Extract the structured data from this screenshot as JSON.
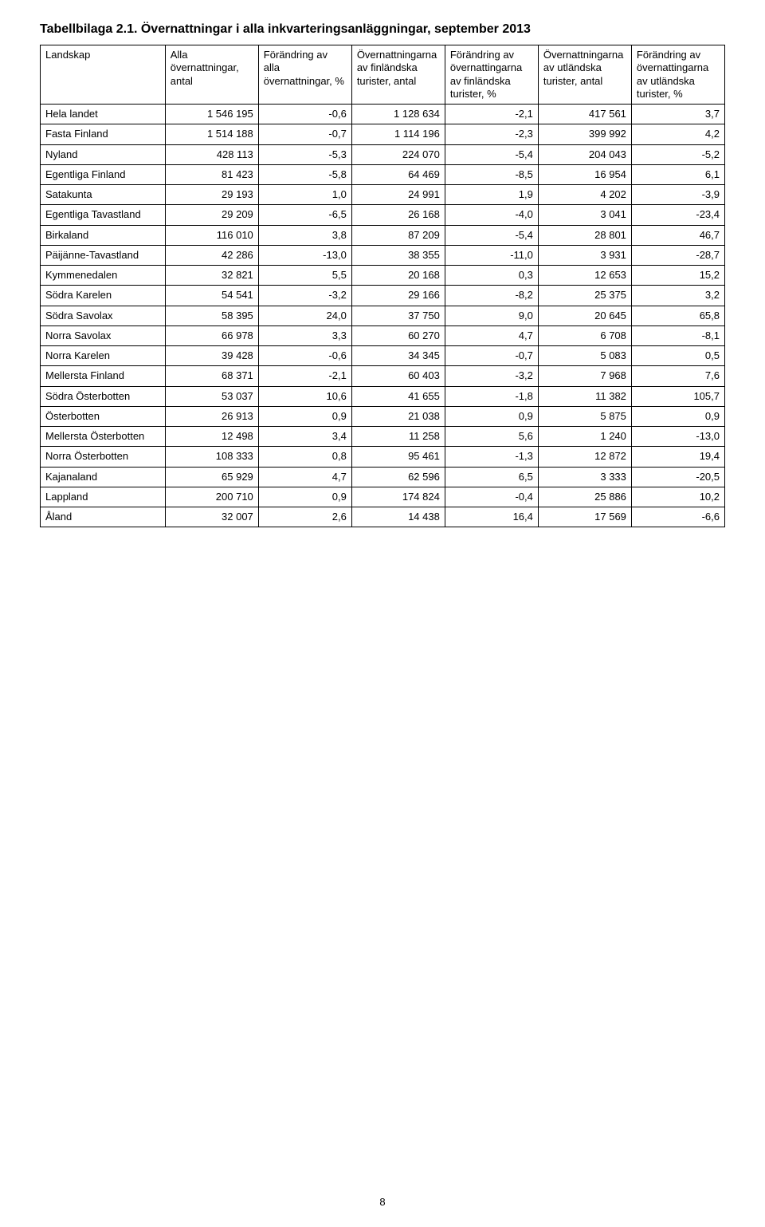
{
  "page_number": "8",
  "title_prefix": "Tabellbilaga 2.1. ",
  "title_main": "Övernattningar i alla inkvarteringsanläggningar, september 2013",
  "table": {
    "columns": [
      "Landskap",
      "Alla övernattningar, antal",
      "Förändring av alla övernattningar, %",
      "Övernattningarna av finländska turister, antal",
      "Förändring av övernattingarna av finländska turister, %",
      "Övernattningarna av utländska turister, antal",
      "Förändring av övernattingarna av utländska turister, %"
    ],
    "col_classes": [
      "col-region",
      "col-n",
      "col-n",
      "col-n",
      "col-n",
      "col-n",
      "col-n"
    ],
    "rows": [
      [
        "Hela landet",
        "1 546 195",
        "-0,6",
        "1 128 634",
        "-2,1",
        "417 561",
        "3,7"
      ],
      [
        "Fasta Finland",
        "1 514 188",
        "-0,7",
        "1 114 196",
        "-2,3",
        "399 992",
        "4,2"
      ],
      [
        "Nyland",
        "428 113",
        "-5,3",
        "224 070",
        "-5,4",
        "204 043",
        "-5,2"
      ],
      [
        "Egentliga Finland",
        "81 423",
        "-5,8",
        "64 469",
        "-8,5",
        "16 954",
        "6,1"
      ],
      [
        "Satakunta",
        "29 193",
        "1,0",
        "24 991",
        "1,9",
        "4 202",
        "-3,9"
      ],
      [
        "Egentliga Tavastland",
        "29 209",
        "-6,5",
        "26 168",
        "-4,0",
        "3 041",
        "-23,4"
      ],
      [
        "Birkaland",
        "116 010",
        "3,8",
        "87 209",
        "-5,4",
        "28 801",
        "46,7"
      ],
      [
        "Päijänne-Tavastland",
        "42 286",
        "-13,0",
        "38 355",
        "-11,0",
        "3 931",
        "-28,7"
      ],
      [
        "Kymmenedalen",
        "32 821",
        "5,5",
        "20 168",
        "0,3",
        "12 653",
        "15,2"
      ],
      [
        "Södra Karelen",
        "54 541",
        "-3,2",
        "29 166",
        "-8,2",
        "25 375",
        "3,2"
      ],
      [
        "Södra Savolax",
        "58 395",
        "24,0",
        "37 750",
        "9,0",
        "20 645",
        "65,8"
      ],
      [
        "Norra Savolax",
        "66 978",
        "3,3",
        "60 270",
        "4,7",
        "6 708",
        "-8,1"
      ],
      [
        "Norra Karelen",
        "39 428",
        "-0,6",
        "34 345",
        "-0,7",
        "5 083",
        "0,5"
      ],
      [
        "Mellersta Finland",
        "68 371",
        "-2,1",
        "60 403",
        "-3,2",
        "7 968",
        "7,6"
      ],
      [
        "Södra Österbotten",
        "53 037",
        "10,6",
        "41 655",
        "-1,8",
        "11 382",
        "105,7"
      ],
      [
        "Österbotten",
        "26 913",
        "0,9",
        "21 038",
        "0,9",
        "5 875",
        "0,9"
      ],
      [
        "Mellersta Österbotten",
        "12 498",
        "3,4",
        "11 258",
        "5,6",
        "1 240",
        "-13,0"
      ],
      [
        "Norra Österbotten",
        "108 333",
        "0,8",
        "95 461",
        "-1,3",
        "12 872",
        "19,4"
      ],
      [
        "Kajanaland",
        "65 929",
        "4,7",
        "62 596",
        "6,5",
        "3 333",
        "-20,5"
      ],
      [
        "Lappland",
        "200 710",
        "0,9",
        "174 824",
        "-0,4",
        "25 886",
        "10,2"
      ],
      [
        "Åland",
        "32 007",
        "2,6",
        "14 438",
        "16,4",
        "17 569",
        "-6,6"
      ]
    ]
  }
}
